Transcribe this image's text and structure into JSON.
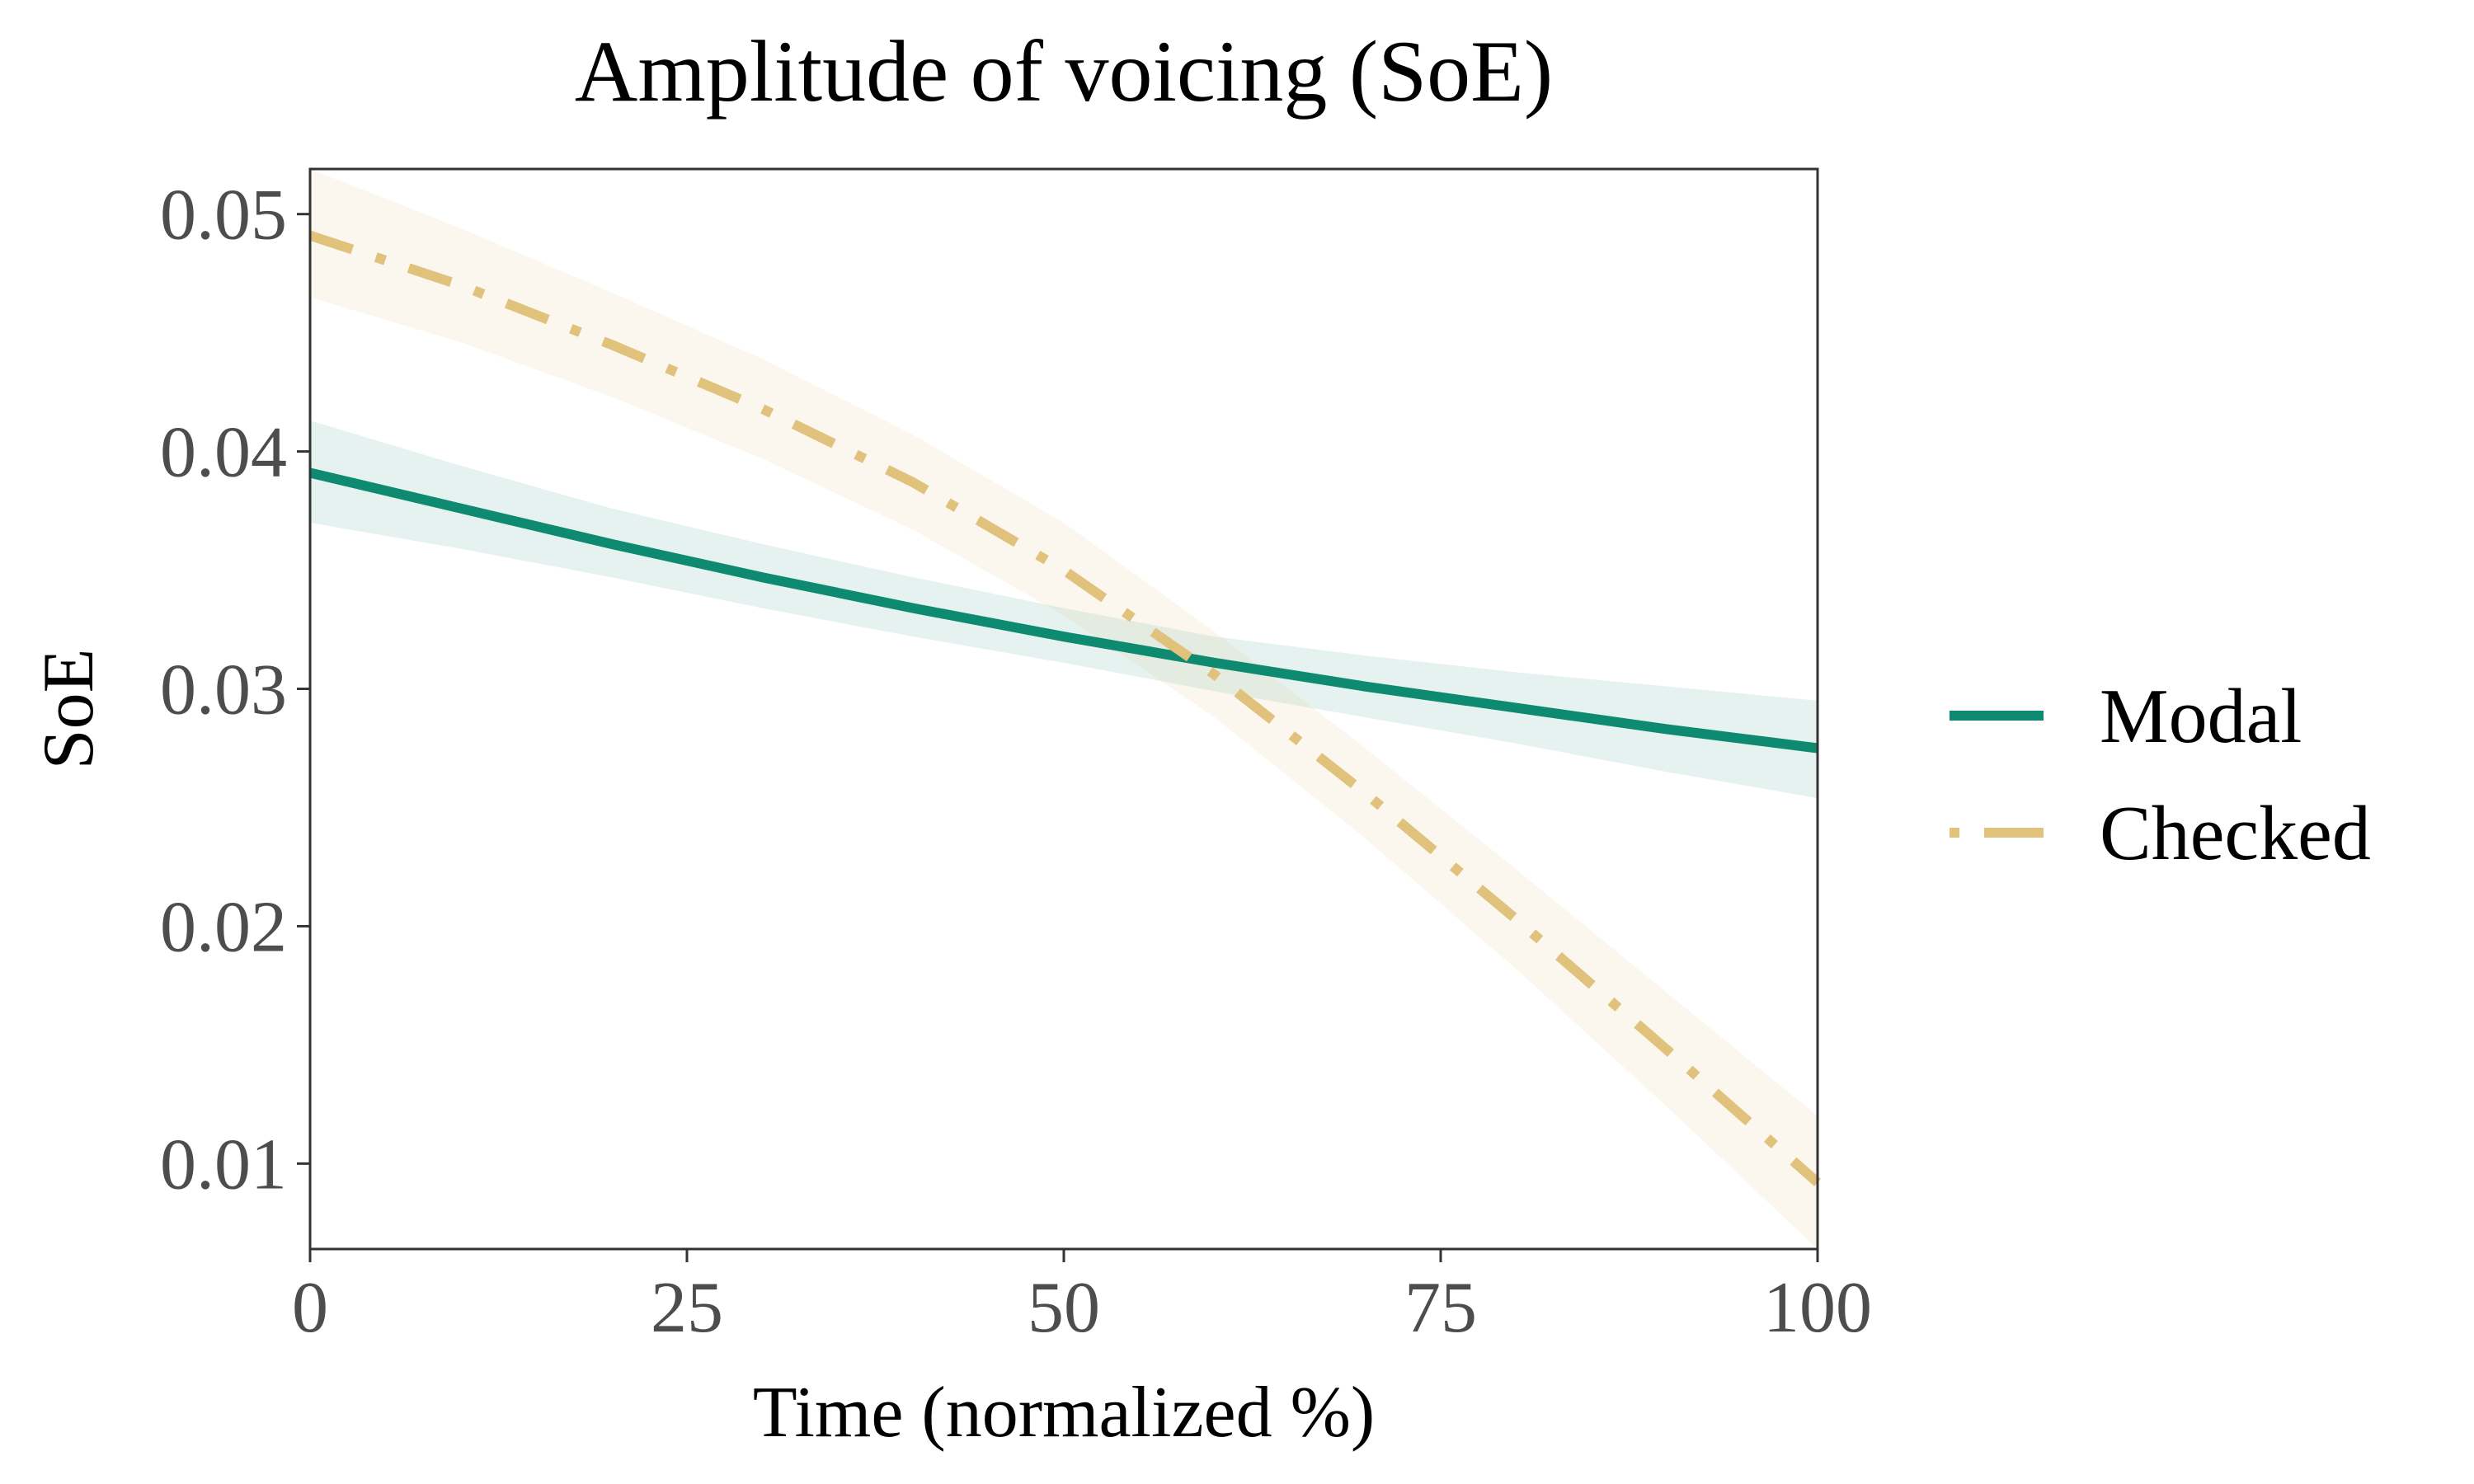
{
  "chart_data": {
    "type": "line",
    "title": "Amplitude of voicing (SoE)",
    "xlabel": "Time (normalized %)",
    "ylabel": "SoE",
    "xlim": [
      0,
      100
    ],
    "ylim": [
      0.0064,
      0.0519
    ],
    "xticks": [
      0,
      25,
      50,
      75,
      100
    ],
    "xtick_labels": [
      "0",
      "25",
      "50",
      "75",
      "100"
    ],
    "yticks": [
      0.01,
      0.02,
      0.03,
      0.04,
      0.05
    ],
    "ytick_labels": [
      "0.01",
      "0.02",
      "0.03",
      "0.04",
      "0.05"
    ],
    "grid": false,
    "legend_position": "right",
    "x": [
      0,
      10,
      20,
      30,
      40,
      50,
      60,
      70,
      80,
      90,
      100
    ],
    "series": [
      {
        "name": "Modal",
        "color": "#0e8a70",
        "line_style": "solid",
        "values": [
          0.0391,
          0.0376,
          0.0361,
          0.0347,
          0.0334,
          0.0322,
          0.0311,
          0.0301,
          0.0292,
          0.0283,
          0.0275
        ],
        "ci_lower": [
          0.037,
          0.0359,
          0.0347,
          0.0334,
          0.0322,
          0.0311,
          0.0299,
          0.0288,
          0.0277,
          0.0265,
          0.0254
        ],
        "ci_upper": [
          0.0413,
          0.0394,
          0.0376,
          0.0361,
          0.0347,
          0.0334,
          0.0322,
          0.0314,
          0.0307,
          0.0301,
          0.0295
        ]
      },
      {
        "name": "Checked",
        "color": "#e0c27c",
        "line_style": "dashdot",
        "values": [
          0.0491,
          0.047,
          0.0445,
          0.0418,
          0.0387,
          0.035,
          0.0306,
          0.0256,
          0.0203,
          0.0148,
          0.0092
        ],
        "ci_lower": [
          0.0465,
          0.0446,
          0.0423,
          0.0397,
          0.0367,
          0.0331,
          0.0288,
          0.0237,
          0.0182,
          0.0124,
          0.0064
        ],
        "ci_upper": [
          0.0519,
          0.0494,
          0.0467,
          0.0439,
          0.0407,
          0.037,
          0.0324,
          0.0275,
          0.0224,
          0.0172,
          0.012
        ]
      }
    ]
  }
}
